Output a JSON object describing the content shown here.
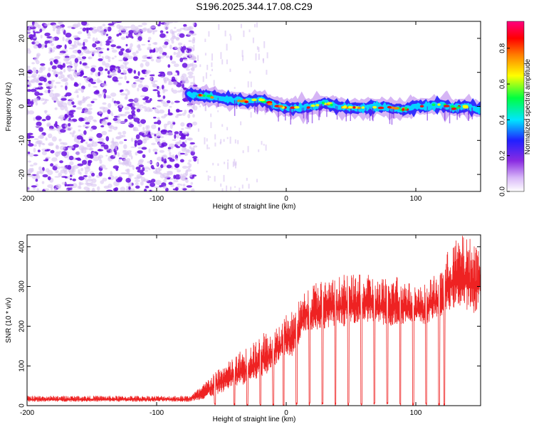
{
  "title": "S196.2025.344.17.08.C29",
  "colors": {
    "snr_line": "#ee2222",
    "axis": "#000000",
    "spectrogram_background": "#ffffff",
    "noise_light": "#d8c4f2",
    "noise_dark": "#6a10e0",
    "colormap": [
      "#ffffff",
      "#d8b8f8",
      "#8a2be2",
      "#2020ff",
      "#00e5ff",
      "#00ff40",
      "#ffff00",
      "#ff8000",
      "#ff0000",
      "#ff0080"
    ]
  },
  "chart_data": [
    {
      "type": "heatmap",
      "name": "spectrogram",
      "xlabel": "Height of straight line (km)",
      "ylabel": "Frequency (Hz)",
      "xlim": [
        -200,
        150
      ],
      "ylim": [
        -25,
        25
      ],
      "xticks": [
        -200,
        -100,
        0,
        100
      ],
      "xtick_labels": [
        "-200",
        "-100",
        "0",
        "100"
      ],
      "yticks": [
        -20,
        -10,
        0,
        10,
        20
      ],
      "ytick_labels": [
        "-20",
        "-10",
        "0",
        "10",
        "20"
      ],
      "signal_trace": {
        "x": [
          -75,
          -60,
          -45,
          -30,
          -20,
          -10,
          0,
          10,
          20,
          30,
          40,
          50,
          60,
          70,
          80,
          90,
          100,
          110,
          120,
          130,
          140,
          150
        ],
        "freq": [
          3.5,
          3,
          2,
          1.5,
          2,
          0.5,
          -0.5,
          -0.5,
          0,
          1,
          0,
          -0.5,
          -0.5,
          0,
          -0.5,
          -1,
          0,
          0,
          0.5,
          -0.5,
          0,
          -1
        ]
      },
      "noise_region_x": [
        -200,
        -75
      ],
      "colorbar": {
        "label": "Normalized spectral amplitude",
        "ticks": [
          0.0,
          0.2,
          0.4,
          0.6,
          0.8
        ],
        "tick_labels": [
          "0.0",
          "0.2",
          "0.4",
          "0.6",
          "0.8"
        ],
        "range": [
          0,
          0.95
        ]
      }
    },
    {
      "type": "line",
      "name": "snr",
      "xlabel": "Height of straight line (km)",
      "ylabel": "SNR (10 * v/v)",
      "xlim": [
        -200,
        150
      ],
      "ylim": [
        0,
        430
      ],
      "xticks": [
        -200,
        -100,
        0,
        100
      ],
      "xtick_labels": [
        "-200",
        "-100",
        "0",
        "100"
      ],
      "yticks": [
        0,
        100,
        200,
        300,
        400
      ],
      "ytick_labels": [
        "0",
        "100",
        "200",
        "300",
        "400"
      ],
      "series": [
        {
          "name": "SNR",
          "envelope_x": [
            -200,
            -75,
            -65,
            -55,
            -45,
            -35,
            -25,
            -15,
            -5,
            0,
            5,
            15,
            25,
            35,
            45,
            55,
            65,
            75,
            85,
            95,
            105,
            115,
            122,
            125,
            135,
            145,
            150
          ],
          "envelope_low": [
            10,
            10,
            15,
            25,
            40,
            50,
            60,
            80,
            110,
            130,
            120,
            190,
            190,
            200,
            200,
            210,
            210,
            200,
            200,
            210,
            200,
            220,
            220,
            240,
            250,
            230,
            260
          ],
          "envelope_high": [
            25,
            25,
            50,
            90,
            110,
            140,
            160,
            190,
            210,
            230,
            240,
            290,
            320,
            320,
            330,
            330,
            330,
            320,
            330,
            310,
            300,
            330,
            340,
            400,
            430,
            420,
            400
          ]
        }
      ],
      "dips_x": [
        -55,
        -40,
        -30,
        -20,
        -10,
        -2,
        8,
        18,
        28,
        38,
        48,
        58,
        68,
        78,
        88,
        98,
        108,
        118,
        122
      ]
    }
  ]
}
